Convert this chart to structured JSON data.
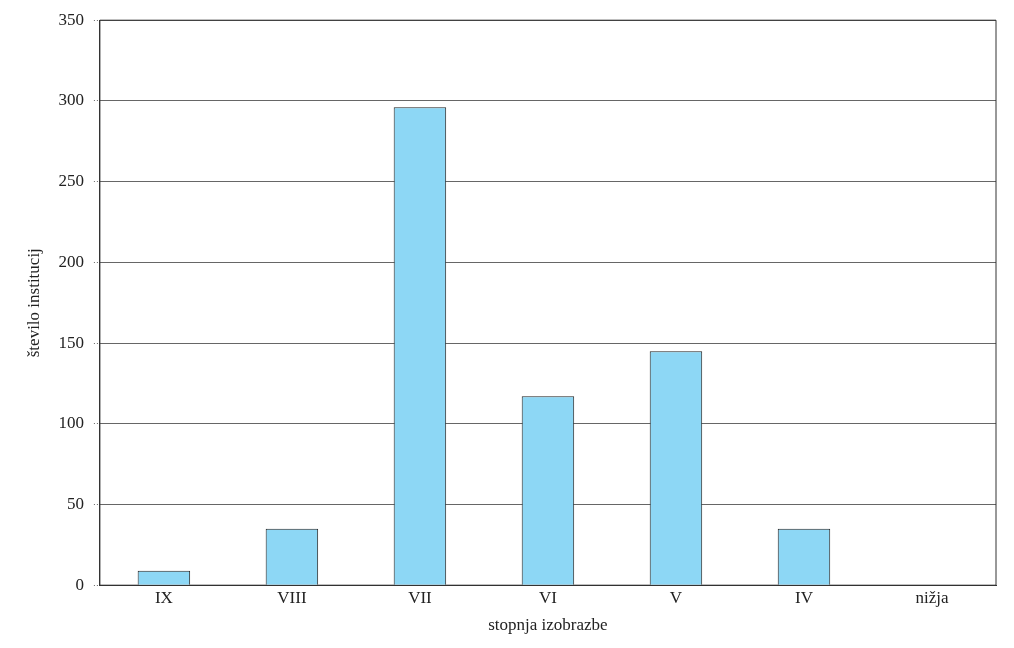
{
  "chart_data": {
    "type": "bar",
    "xlabel": "stopnja izobrazbe",
    "ylabel": "število institucij",
    "categories": [
      "IX",
      "VIII",
      "VII",
      "VI",
      "V",
      "IV",
      "nižja"
    ],
    "values": [
      9,
      35,
      296,
      117,
      145,
      35,
      0
    ],
    "color": "#8dd7f5",
    "ylim": [
      0,
      350
    ],
    "yticks": [
      0,
      50,
      100,
      150,
      200,
      250,
      300,
      350
    ],
    "grid": "y",
    "legend": false
  }
}
